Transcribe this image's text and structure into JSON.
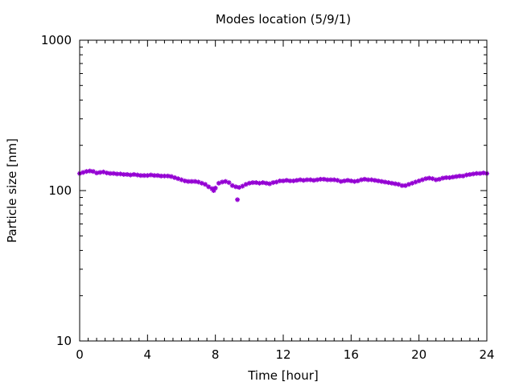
{
  "chart_data": {
    "type": "scatter",
    "title": "Modes location (5/9/1)",
    "xlabel": "Time [hour]",
    "ylabel": "Particle size [nm]",
    "xlim": [
      0,
      24
    ],
    "ylim": [
      10,
      1000
    ],
    "yscale": "log",
    "grid": false,
    "legend": "none",
    "x_ticks": [
      0,
      4,
      8,
      12,
      16,
      20,
      24
    ],
    "x_tick_labels": [
      "0",
      "4",
      "8",
      "12",
      "16",
      "20",
      "24"
    ],
    "y_ticks": [
      10,
      100,
      1000
    ],
    "y_tick_labels": [
      "10",
      "100",
      "1000"
    ],
    "series": [
      {
        "color": "#9400d3",
        "marker": "star",
        "x": [
          0,
          0.2,
          0.4,
          0.6,
          0.8,
          1.0,
          1.2,
          1.4,
          1.6,
          1.8,
          2.0,
          2.2,
          2.4,
          2.6,
          2.8,
          3.0,
          3.2,
          3.4,
          3.6,
          3.8,
          4.0,
          4.2,
          4.4,
          4.6,
          4.8,
          5.0,
          5.2,
          5.4,
          5.6,
          5.8,
          6.0,
          6.2,
          6.4,
          6.6,
          6.8,
          7.0,
          7.2,
          7.4,
          7.6,
          7.8,
          7.9,
          8.0,
          8.2,
          8.4,
          8.6,
          8.8,
          9.0,
          9.2,
          9.4,
          9.6,
          9.8,
          10.0,
          10.2,
          10.4,
          10.6,
          10.8,
          11.0,
          11.2,
          11.4,
          11.6,
          11.8,
          12.0,
          12.2,
          12.4,
          12.6,
          12.8,
          13.0,
          13.2,
          13.4,
          13.6,
          13.8,
          14.0,
          14.2,
          14.4,
          14.6,
          14.8,
          15.0,
          15.2,
          15.4,
          15.6,
          15.8,
          16.0,
          16.2,
          16.4,
          16.6,
          16.8,
          17.0,
          17.2,
          17.4,
          17.6,
          17.8,
          18.0,
          18.2,
          18.4,
          18.6,
          18.8,
          19.0,
          19.2,
          19.4,
          19.6,
          19.8,
          20.0,
          20.2,
          20.4,
          20.6,
          20.8,
          21.0,
          21.2,
          21.4,
          21.6,
          21.8,
          22.0,
          22.2,
          22.4,
          22.6,
          22.8,
          23.0,
          23.2,
          23.4,
          23.6,
          23.8,
          24.0,
          9.3
        ],
        "y": [
          130,
          132,
          134,
          135,
          134,
          131,
          132,
          133,
          131,
          130,
          130,
          129,
          129,
          128,
          128,
          127,
          128,
          127,
          126,
          126,
          126,
          127,
          126,
          126,
          125,
          125,
          125,
          124,
          122,
          120,
          118,
          116,
          115,
          115,
          115,
          114,
          112,
          110,
          106,
          103,
          100,
          104,
          112,
          114,
          115,
          113,
          108,
          106,
          105,
          107,
          110,
          112,
          113,
          113,
          112,
          113,
          112,
          111,
          113,
          114,
          116,
          116,
          117,
          116,
          116,
          117,
          118,
          117,
          118,
          118,
          117,
          118,
          119,
          119,
          118,
          118,
          118,
          117,
          115,
          116,
          117,
          116,
          115,
          116,
          118,
          119,
          118,
          118,
          117,
          116,
          115,
          114,
          113,
          112,
          111,
          110,
          108,
          108,
          110,
          112,
          114,
          116,
          118,
          120,
          121,
          120,
          118,
          119,
          121,
          122,
          122,
          123,
          124,
          125,
          125,
          127,
          128,
          129,
          130,
          130,
          131,
          130,
          87
        ]
      }
    ]
  }
}
